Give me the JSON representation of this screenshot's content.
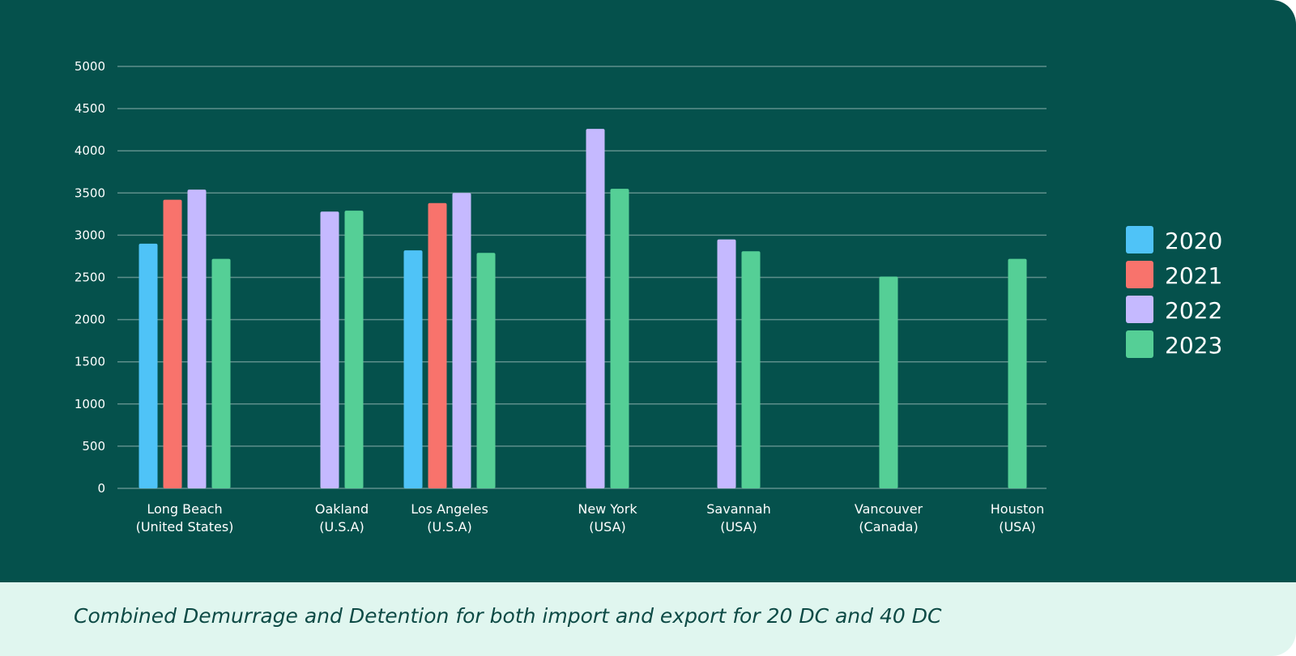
{
  "caption": "Combined Demurrage and Detention for both import and export for 20 DC and 40 DC",
  "colors": {
    "background": "#05514c",
    "caption_background": "#e0f6ef",
    "grid": "#5e8f8b"
  },
  "chart_data": {
    "type": "bar",
    "title": "",
    "xlabel": "",
    "ylabel": "",
    "ylim": [
      0,
      5000
    ],
    "yticks": [
      0,
      500,
      1000,
      1500,
      2000,
      2500,
      3000,
      3500,
      4000,
      4500,
      5000
    ],
    "grid": true,
    "legend_position": "right",
    "categories": [
      [
        "Long Beach",
        "(United States)"
      ],
      [
        "Oakland",
        "(U.S.A)"
      ],
      [
        "Los Angeles",
        "(U.S.A)"
      ],
      [
        "New York",
        "(USA)"
      ],
      [
        "Savannah",
        "(USA)"
      ],
      [
        "Vancouver",
        "(Canada)"
      ],
      [
        "Houston",
        "(USA)"
      ]
    ],
    "series": [
      {
        "name": "2020",
        "color": "#4fc3f7",
        "values": [
          2900,
          null,
          2820,
          null,
          null,
          null,
          null
        ]
      },
      {
        "name": "2021",
        "color": "#f8736c",
        "values": [
          3420,
          null,
          3380,
          null,
          null,
          null,
          null
        ]
      },
      {
        "name": "2022",
        "color": "#c5b9ff",
        "values": [
          3540,
          3280,
          3500,
          4260,
          2950,
          null,
          null
        ]
      },
      {
        "name": "2023",
        "color": "#55cf96",
        "values": [
          2720,
          3290,
          2790,
          3550,
          2810,
          2510,
          2720
        ]
      }
    ]
  }
}
